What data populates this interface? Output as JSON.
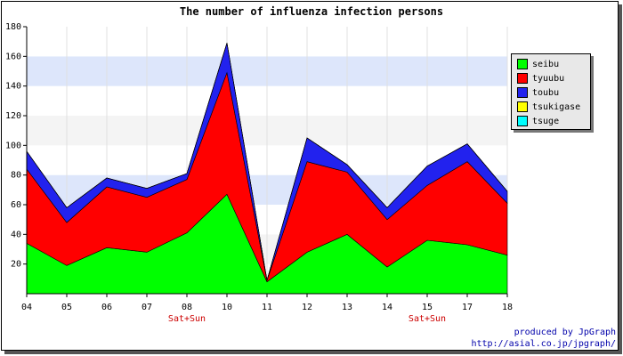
{
  "chart_data": {
    "type": "area",
    "stacked": true,
    "title": "The number of influenza infection persons",
    "categories": [
      "04",
      "05",
      "06",
      "07",
      "08",
      "10",
      "11",
      "12",
      "13",
      "14",
      "15",
      "17",
      "18"
    ],
    "sublabels": [
      "",
      "",
      "",
      "",
      "Sat+Sun",
      "",
      "",
      "",
      "",
      "",
      "Sat+Sun",
      "",
      ""
    ],
    "ylim": [
      0,
      180
    ],
    "yticks": [
      20,
      40,
      60,
      80,
      100,
      120,
      140,
      160,
      180
    ],
    "grid": true,
    "legend_position": "right",
    "series": [
      {
        "name": "seibu",
        "color": "#00ff00",
        "values": [
          34,
          19,
          31,
          28,
          41,
          67,
          8,
          28,
          40,
          18,
          36,
          33,
          26
        ]
      },
      {
        "name": "tyuubu",
        "color": "#ff0000",
        "values": [
          50,
          29,
          41,
          37,
          36,
          82,
          1,
          61,
          42,
          32,
          37,
          56,
          35
        ]
      },
      {
        "name": "toubu",
        "color": "#2222ee",
        "values": [
          12,
          10,
          6,
          6,
          4,
          20,
          0,
          16,
          5,
          8,
          13,
          12,
          8
        ]
      },
      {
        "name": "tsukigase",
        "color": "#ffff00",
        "values": [
          0,
          0,
          0,
          0,
          0,
          0,
          0,
          0,
          0,
          0,
          0,
          0,
          0
        ]
      },
      {
        "name": "tsuge",
        "color": "#00ffff",
        "values": [
          0,
          0,
          0,
          0,
          0,
          0,
          0,
          0,
          0,
          0,
          0,
          0,
          0
        ]
      }
    ]
  },
  "credits": {
    "line1": "produced by JpGraph",
    "line2": "http://asial.co.jp/jpgraph/"
  }
}
